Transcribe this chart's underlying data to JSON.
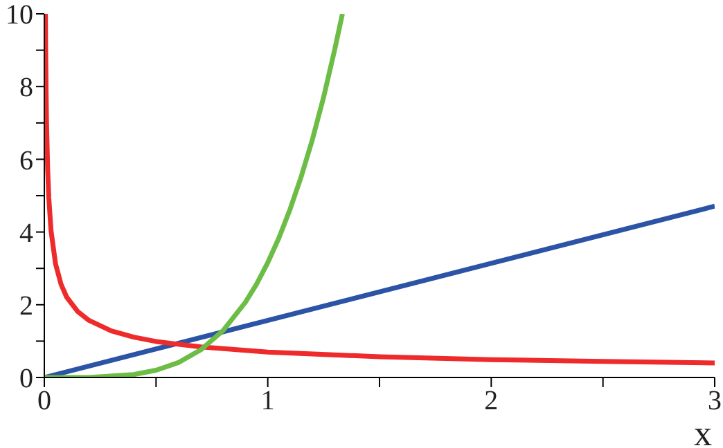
{
  "chart_data": {
    "type": "line",
    "xlabel": "x",
    "xlim": [
      0,
      3
    ],
    "ylim": [
      0,
      10
    ],
    "xticks": [
      0,
      {
        "value": 0.5,
        "label": null
      },
      1,
      {
        "value": 1.5,
        "label": null
      },
      2,
      {
        "value": 2.5,
        "label": null
      },
      3
    ],
    "yticks": [
      0,
      {
        "value": 1,
        "label": null
      },
      2,
      {
        "value": 3,
        "label": null
      },
      4,
      {
        "value": 5,
        "label": null
      },
      6,
      {
        "value": 7,
        "label": null
      },
      8,
      {
        "value": 9,
        "label": null
      },
      10
    ],
    "grid": false,
    "marker": "none",
    "line_style": "solid",
    "series": [
      {
        "color": "#2b54a6",
        "x": [
          0,
          3
        ],
        "values": [
          0,
          4.71
        ]
      },
      {
        "color": "#ee2a2a",
        "x": [
          0.0049,
          0.006,
          0.008,
          0.01,
          0.015,
          0.02,
          0.03,
          0.05,
          0.075,
          0.1,
          0.15,
          0.2,
          0.3,
          0.4,
          0.5,
          0.7,
          1,
          1.5,
          2,
          2.5,
          3
        ],
        "values": [
          10,
          9.04,
          7.83,
          7,
          5.72,
          4.95,
          4.04,
          3.13,
          2.56,
          2.21,
          1.81,
          1.57,
          1.28,
          1.11,
          0.99,
          0.84,
          0.7,
          0.57,
          0.49,
          0.44,
          0.4
        ]
      },
      {
        "color": "#6cbd45",
        "x": [
          0,
          0.2,
          0.4,
          0.5,
          0.6,
          0.7,
          0.8,
          0.9,
          0.95,
          1,
          1.05,
          1.1,
          1.15,
          1.2,
          1.25,
          1.3,
          1.334
        ],
        "values": [
          0,
          0,
          0.08,
          0.2,
          0.41,
          0.76,
          1.29,
          2.07,
          2.57,
          3.16,
          3.84,
          4.63,
          5.53,
          6.55,
          7.71,
          9.03,
          10
        ]
      }
    ]
  }
}
